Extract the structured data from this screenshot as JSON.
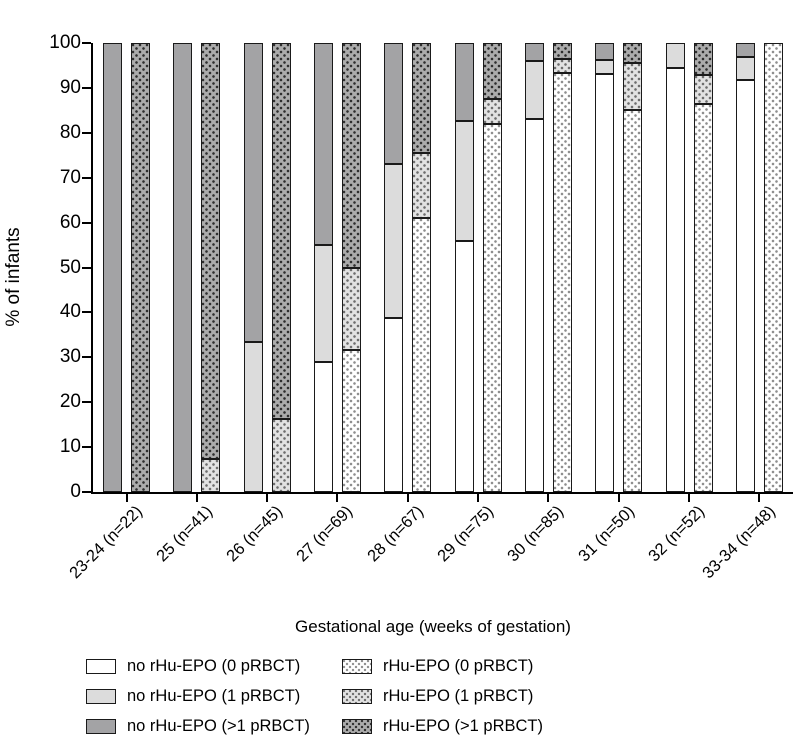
{
  "chart_data": {
    "type": "bar",
    "stacked": true,
    "title": "",
    "xlabel": "Gestational age (weeks of gestation)",
    "ylabel": "% of infants",
    "ylim": [
      0,
      100
    ],
    "yticks": [
      0,
      10,
      20,
      30,
      40,
      50,
      60,
      70,
      80,
      90,
      100
    ],
    "grid": false,
    "categories": [
      "23-24 (n=22)",
      "25 (n=41)",
      "26 (n=45)",
      "27 (n=69)",
      "28 (n=67)",
      "29 (n=75)",
      "30 (n=85)",
      "31 (n=50)",
      "32 (n=52)",
      "33-34 (n=48)"
    ],
    "stacks": [
      "no rHu-EPO",
      "rHu-EPO"
    ],
    "series": [
      {
        "name": "no rHu-EPO (0 pRBCT)",
        "stack": "no rHu-EPO",
        "pattern": "solid",
        "fill": "#ffffff",
        "dot": null,
        "values": [
          0,
          0,
          0,
          29.0,
          38.8,
          56.0,
          83.0,
          93.0,
          94.4,
          91.7
        ]
      },
      {
        "name": "no rHu-EPO (1 pRBCT)",
        "stack": "no rHu-EPO",
        "pattern": "solid",
        "fill": "#dcdcdc",
        "dot": null,
        "values": [
          0,
          0,
          33.3,
          26.0,
          34.3,
          26.7,
          13.0,
          3.3,
          5.6,
          5.2
        ]
      },
      {
        "name": "no rHu-EPO (>1 pRBCT)",
        "stack": "no rHu-EPO",
        "pattern": "solid",
        "fill": "#a3a3a5",
        "dot": null,
        "values": [
          100,
          100,
          66.7,
          45.0,
          26.9,
          17.3,
          4.0,
          3.7,
          0,
          3.1
        ]
      },
      {
        "name": "rHu-EPO (0 pRBCT)",
        "stack": "rHu-EPO",
        "pattern": "dots",
        "fill": "#ffffff",
        "dot": "#8f8f8f",
        "values": [
          0,
          0,
          0,
          31.7,
          61.0,
          82.0,
          93.3,
          85.0,
          86.4,
          100
        ]
      },
      {
        "name": "rHu-EPO (1 pRBCT)",
        "stack": "rHu-EPO",
        "pattern": "dots",
        "fill": "#e2e2e2",
        "dot": "#6e6e6e",
        "values": [
          0,
          7.3,
          16.3,
          18.3,
          14.5,
          5.5,
          3.1,
          10.5,
          6.5,
          0
        ]
      },
      {
        "name": "rHu-EPO (>1 pRBCT)",
        "stack": "rHu-EPO",
        "pattern": "dots",
        "fill": "#ababab",
        "dot": "#2e2e2e",
        "values": [
          100,
          92.7,
          83.7,
          50.0,
          24.5,
          12.5,
          3.6,
          4.5,
          7.1,
          0
        ]
      }
    ],
    "legend": {
      "position": "bottom",
      "columns": [
        [
          "no rHu-EPO (0 pRBCT)",
          "no rHu-EPO (1 pRBCT)",
          "no rHu-EPO (>1 pRBCT)"
        ],
        [
          "rHu-EPO (0 pRBCT)",
          "rHu-EPO (1 pRBCT)",
          "rHu-EPO (>1 pRBCT)"
        ]
      ]
    },
    "axis_color": "#000000"
  }
}
